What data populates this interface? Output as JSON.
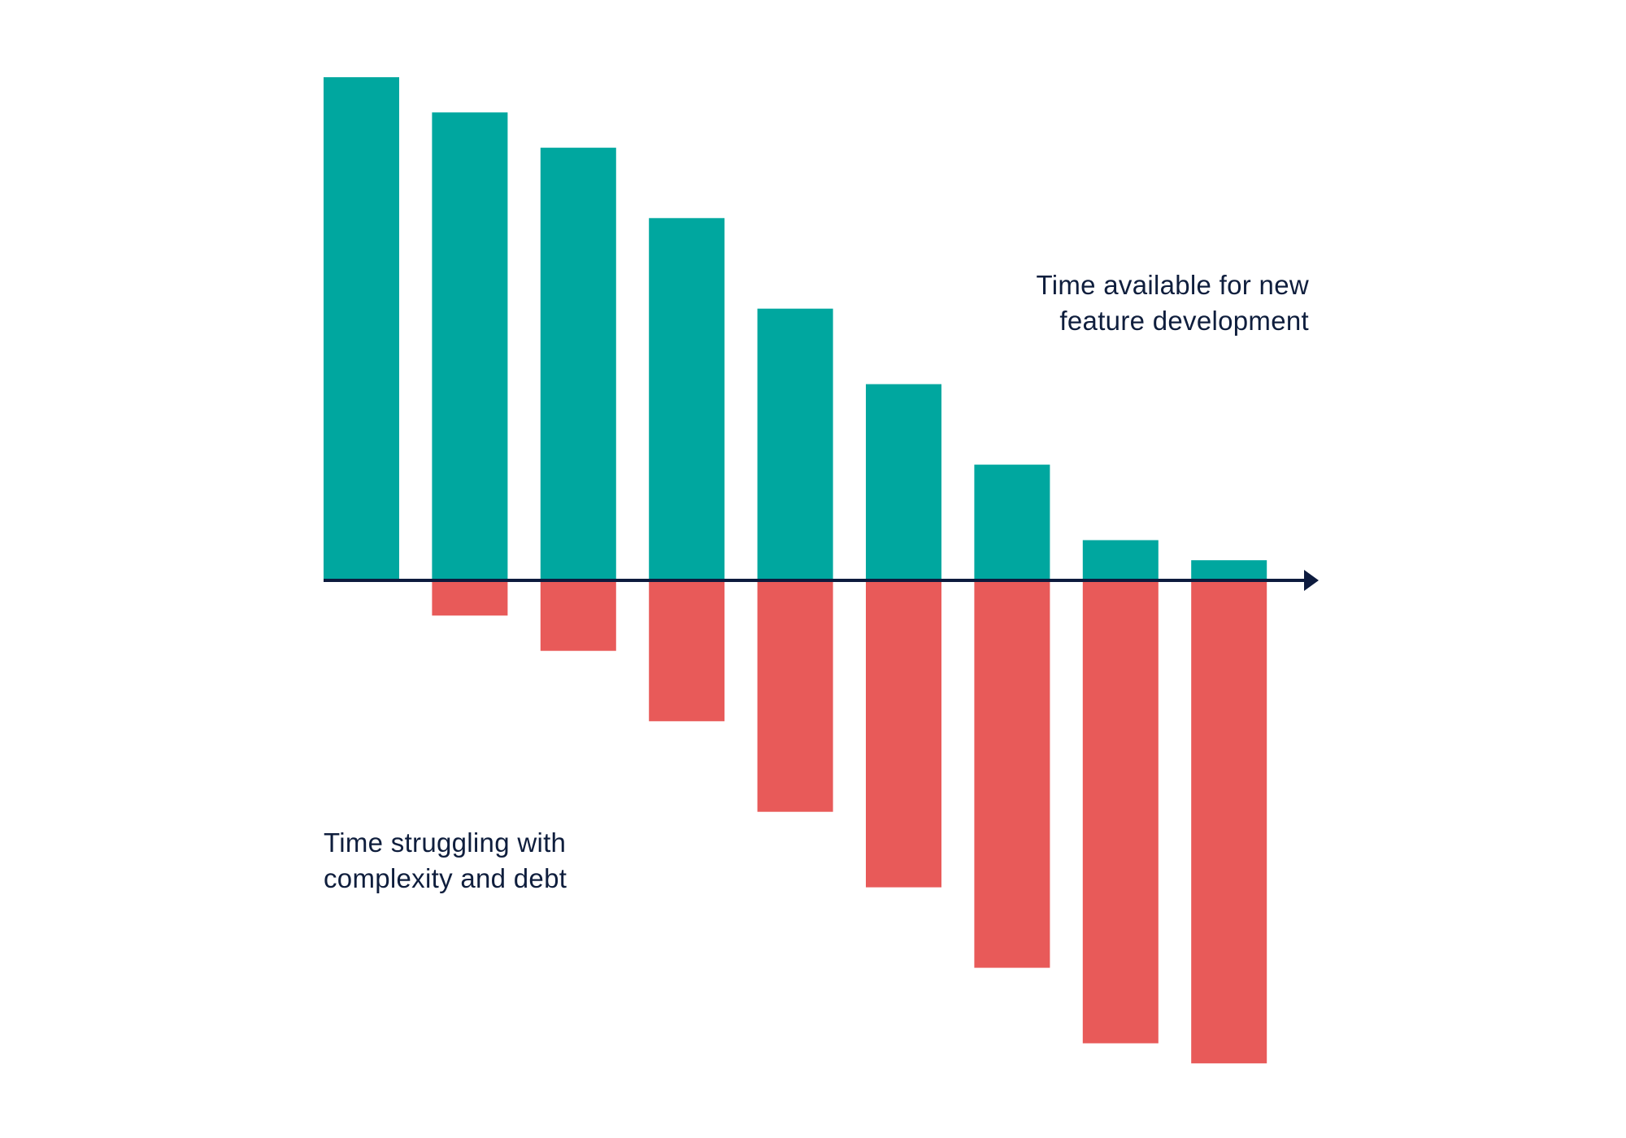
{
  "chart_data": {
    "type": "bar",
    "diverging": true,
    "series": [
      {
        "name": "Time available for new\nfeature development",
        "values": [
          100,
          93,
          86,
          72,
          54,
          39,
          23,
          8,
          4
        ],
        "color": "#00A79F",
        "label_position": "top-right"
      },
      {
        "name": "Time struggling with\ncomplexity and debt",
        "values": [
          0,
          -7,
          -14,
          -28,
          -46,
          -61,
          -77,
          -92,
          -96
        ],
        "color": "#E85A59",
        "label_position": "bottom-left"
      }
    ],
    "ylim": [
      -100,
      100
    ],
    "grid": false,
    "legend": "none",
    "x_axis_arrow": true,
    "axis_color": "#0D1B3E",
    "text_color": "#0F1E3D"
  }
}
